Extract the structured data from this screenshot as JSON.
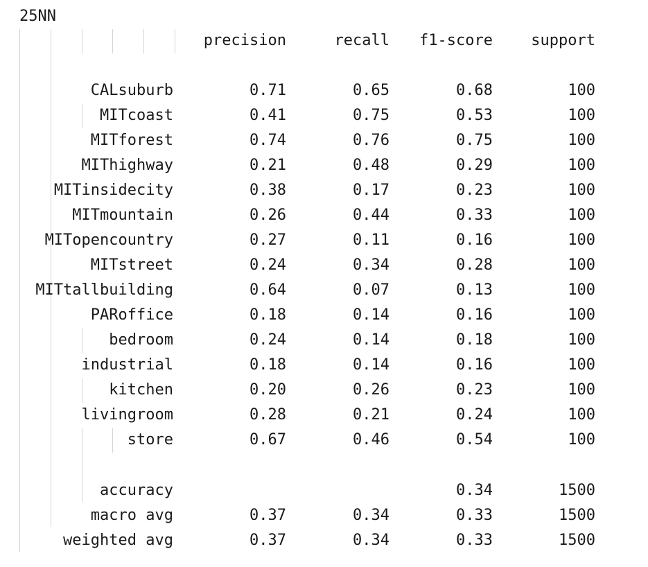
{
  "title": "25NN",
  "columns": [
    "precision",
    "recall",
    "f1-score",
    "support"
  ],
  "rows": [
    {
      "label": "CALsuburb",
      "precision": "0.71",
      "recall": "0.65",
      "f1": "0.68",
      "support": "100"
    },
    {
      "label": "MITcoast",
      "precision": "0.41",
      "recall": "0.75",
      "f1": "0.53",
      "support": "100"
    },
    {
      "label": "MITforest",
      "precision": "0.74",
      "recall": "0.76",
      "f1": "0.75",
      "support": "100"
    },
    {
      "label": "MIThighway",
      "precision": "0.21",
      "recall": "0.48",
      "f1": "0.29",
      "support": "100"
    },
    {
      "label": "MITinsidecity",
      "precision": "0.38",
      "recall": "0.17",
      "f1": "0.23",
      "support": "100"
    },
    {
      "label": "MITmountain",
      "precision": "0.26",
      "recall": "0.44",
      "f1": "0.33",
      "support": "100"
    },
    {
      "label": "MITopencountry",
      "precision": "0.27",
      "recall": "0.11",
      "f1": "0.16",
      "support": "100"
    },
    {
      "label": "MITstreet",
      "precision": "0.24",
      "recall": "0.34",
      "f1": "0.28",
      "support": "100"
    },
    {
      "label": "MITtallbuilding",
      "precision": "0.64",
      "recall": "0.07",
      "f1": "0.13",
      "support": "100"
    },
    {
      "label": "PARoffice",
      "precision": "0.18",
      "recall": "0.14",
      "f1": "0.16",
      "support": "100"
    },
    {
      "label": "bedroom",
      "precision": "0.24",
      "recall": "0.14",
      "f1": "0.18",
      "support": "100"
    },
    {
      "label": "industrial",
      "precision": "0.18",
      "recall": "0.14",
      "f1": "0.16",
      "support": "100"
    },
    {
      "label": "kitchen",
      "precision": "0.20",
      "recall": "0.26",
      "f1": "0.23",
      "support": "100"
    },
    {
      "label": "livingroom",
      "precision": "0.28",
      "recall": "0.21",
      "f1": "0.24",
      "support": "100"
    },
    {
      "label": "store",
      "precision": "0.67",
      "recall": "0.46",
      "f1": "0.54",
      "support": "100"
    }
  ],
  "summary": [
    {
      "label": "accuracy",
      "precision": "",
      "recall": "",
      "f1": "0.34",
      "support": "1500"
    },
    {
      "label": "macro avg",
      "precision": "0.37",
      "recall": "0.34",
      "f1": "0.33",
      "support": "1500"
    },
    {
      "label": "weighted avg",
      "precision": "0.37",
      "recall": "0.34",
      "f1": "0.33",
      "support": "1500"
    }
  ]
}
